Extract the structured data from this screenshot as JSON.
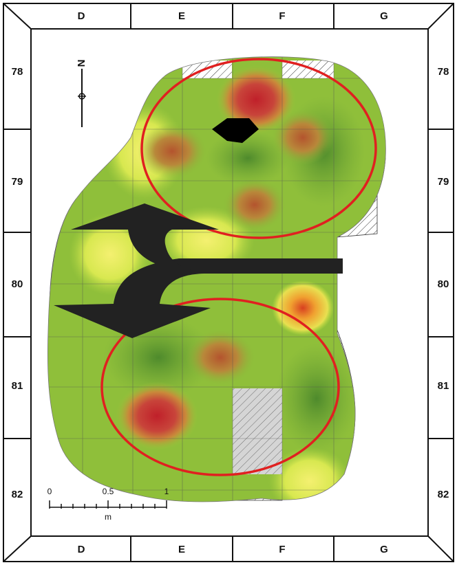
{
  "columns": [
    "D",
    "E",
    "F",
    "G"
  ],
  "rows": [
    "78",
    "79",
    "80",
    "81",
    "82"
  ],
  "north": "N",
  "scale_bar": {
    "ticks": [
      "0",
      "0.5",
      "1"
    ],
    "unit": "m"
  }
}
